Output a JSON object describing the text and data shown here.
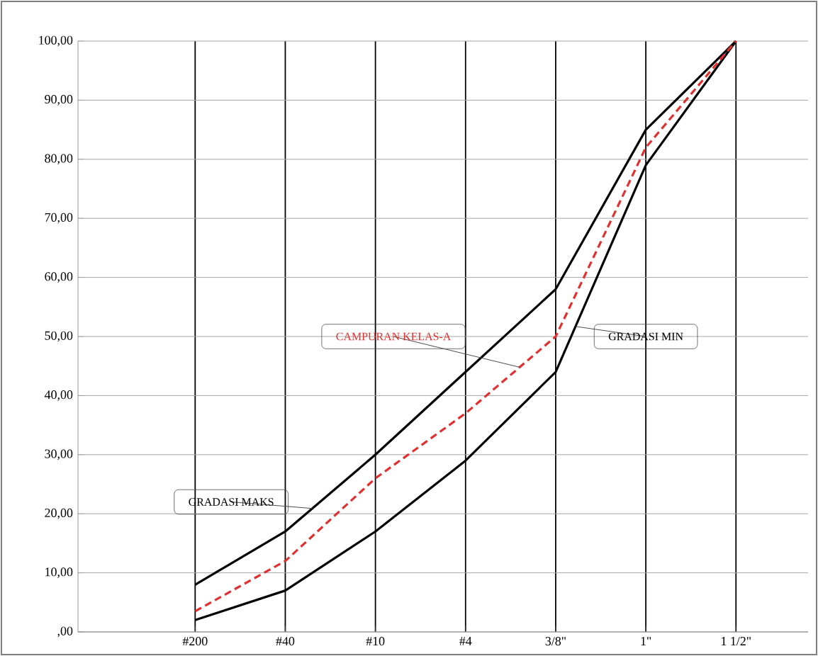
{
  "chart_data": {
    "type": "line",
    "grid": true,
    "legend": false,
    "marker": "none",
    "categories": [
      "#200",
      "#40",
      "#10",
      "#4",
      "3/8\"",
      "1\"",
      "1 1/2\""
    ],
    "ylim": [
      0,
      100
    ],
    "yticks": [
      {
        "value": 0,
        "label": ",00"
      },
      {
        "value": 10,
        "label": "10,00"
      },
      {
        "value": 20,
        "label": "20,00"
      },
      {
        "value": 30,
        "label": "30,00"
      },
      {
        "value": 40,
        "label": "40,00"
      },
      {
        "value": 50,
        "label": "50,00"
      },
      {
        "value": 60,
        "label": "60,00"
      },
      {
        "value": 70,
        "label": "70,00"
      },
      {
        "value": 80,
        "label": "80,00"
      },
      {
        "value": 90,
        "label": "90,00"
      },
      {
        "value": 100,
        "label": "100,00"
      }
    ],
    "series": [
      {
        "name": "GRADASI MAKS",
        "color": "#000000",
        "line_style": "solid",
        "values": [
          8,
          17,
          30,
          44,
          58,
          85,
          100
        ]
      },
      {
        "name": "GRADASI MIN",
        "color": "#000000",
        "line_style": "solid",
        "values": [
          2,
          7,
          17,
          29,
          44,
          79,
          100
        ]
      },
      {
        "name": "CAMPURAN KELAS-A",
        "color": "#e03030",
        "line_style": "dashed",
        "values": [
          3.5,
          12,
          26,
          37,
          50,
          82,
          100
        ]
      }
    ]
  }
}
